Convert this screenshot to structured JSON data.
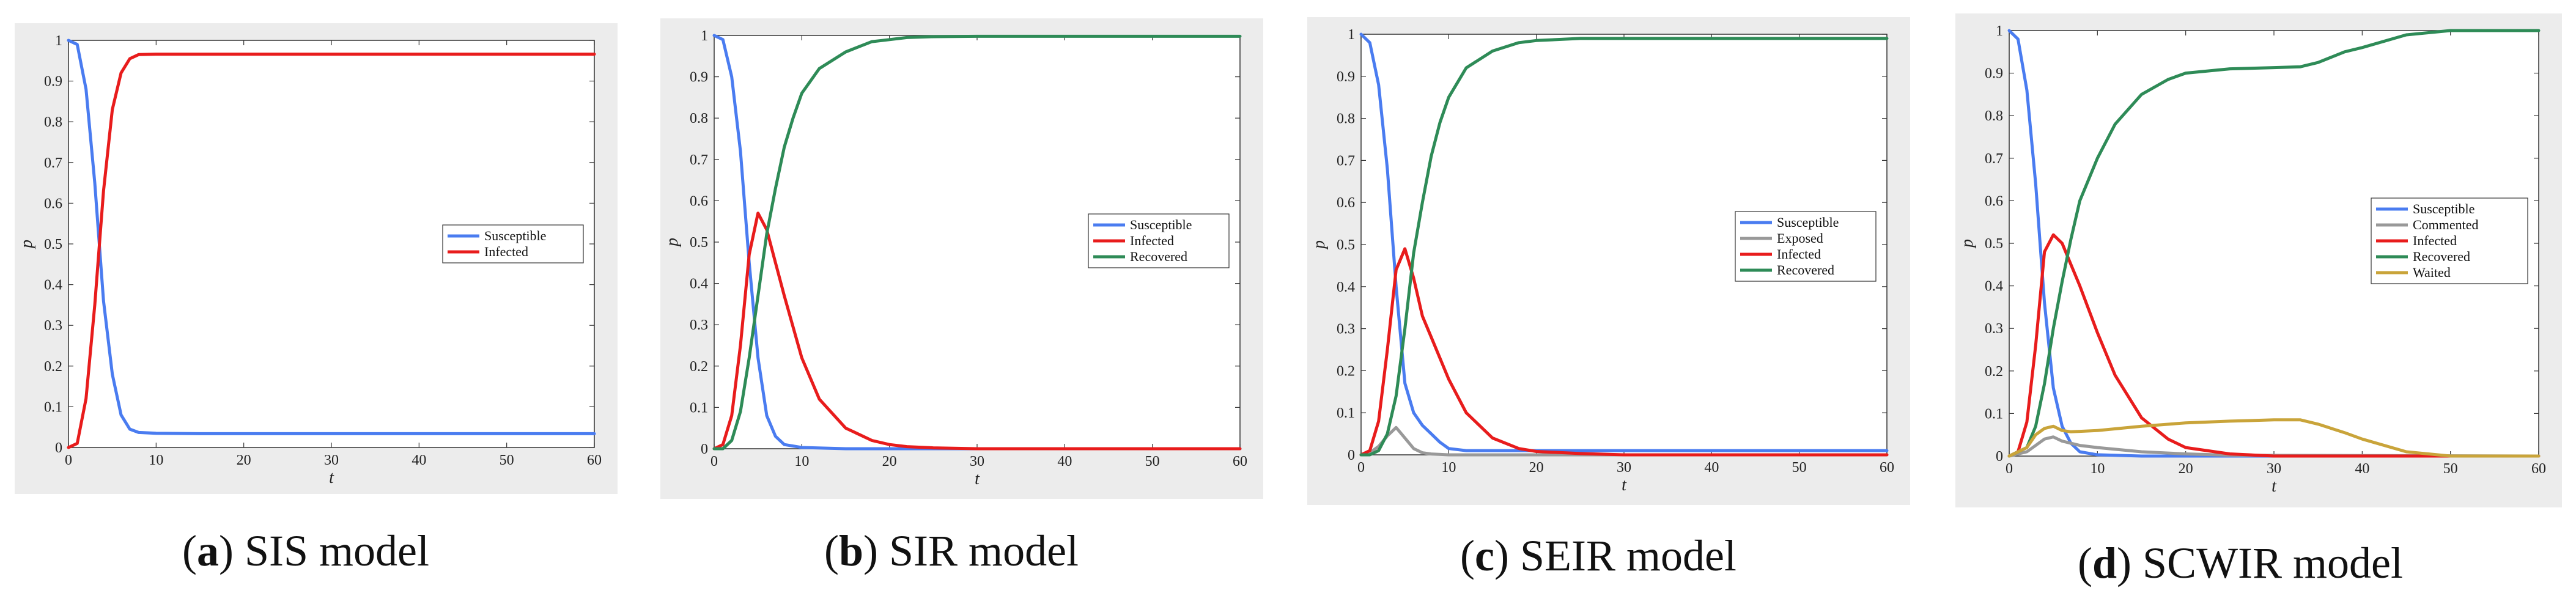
{
  "captions": [
    {
      "letter": "a",
      "text": " SIS model"
    },
    {
      "letter": "b",
      "text": " SIR model"
    },
    {
      "letter": "c",
      "text": " SEIR model"
    },
    {
      "letter": "d",
      "text": " SCWIR model"
    }
  ],
  "chart_data": [
    {
      "type": "line",
      "xlabel": "t",
      "ylabel": "p",
      "xlim": [
        0,
        60
      ],
      "ylim": [
        0,
        1
      ],
      "xticks": [
        "0",
        "10",
        "20",
        "30",
        "40",
        "50",
        "60"
      ],
      "yticks": [
        "0",
        "0.1",
        "0.2",
        "0.3",
        "0.4",
        "0.5",
        "0.6",
        "0.7",
        "0.8",
        "0.9",
        "1"
      ],
      "legend_position": "right",
      "series": [
        {
          "name": "Susceptible",
          "color": "#4a7cf0",
          "x": [
            0,
            1,
            2,
            3,
            4,
            5,
            6,
            7,
            8,
            10,
            15,
            20,
            30,
            40,
            50,
            60
          ],
          "y": [
            1.0,
            0.99,
            0.88,
            0.65,
            0.36,
            0.18,
            0.08,
            0.045,
            0.037,
            0.035,
            0.034,
            0.034,
            0.034,
            0.034,
            0.034,
            0.034
          ]
        },
        {
          "name": "Infected",
          "color": "#e81c1c",
          "x": [
            0,
            1,
            2,
            3,
            4,
            5,
            6,
            7,
            8,
            10,
            15,
            20,
            30,
            40,
            50,
            60
          ],
          "y": [
            0.0,
            0.01,
            0.12,
            0.35,
            0.63,
            0.83,
            0.92,
            0.955,
            0.965,
            0.966,
            0.966,
            0.966,
            0.966,
            0.966,
            0.966,
            0.966
          ]
        }
      ]
    },
    {
      "type": "line",
      "xlabel": "t",
      "ylabel": "p",
      "xlim": [
        0,
        60
      ],
      "ylim": [
        0,
        1
      ],
      "xticks": [
        "0",
        "10",
        "20",
        "30",
        "40",
        "50",
        "60"
      ],
      "yticks": [
        "0",
        "0.1",
        "0.2",
        "0.3",
        "0.4",
        "0.5",
        "0.6",
        "0.7",
        "0.8",
        "0.9",
        "1"
      ],
      "legend_position": "right",
      "series": [
        {
          "name": "Susceptible",
          "color": "#4a7cf0",
          "x": [
            0,
            1,
            2,
            3,
            4,
            5,
            6,
            7,
            8,
            10,
            15,
            20,
            30,
            40,
            50,
            60
          ],
          "y": [
            1.0,
            0.99,
            0.9,
            0.72,
            0.45,
            0.22,
            0.08,
            0.03,
            0.01,
            0.003,
            0.0,
            0.0,
            0.0,
            0.0,
            0.0,
            0.0
          ]
        },
        {
          "name": "Infected",
          "color": "#e81c1c",
          "x": [
            0,
            1,
            2,
            3,
            4,
            5,
            6,
            7,
            8,
            10,
            12,
            15,
            18,
            20,
            22,
            25,
            30,
            40,
            50,
            60
          ],
          "y": [
            0.0,
            0.01,
            0.08,
            0.25,
            0.47,
            0.57,
            0.53,
            0.45,
            0.37,
            0.22,
            0.12,
            0.05,
            0.02,
            0.01,
            0.005,
            0.002,
            0.0,
            0.0,
            0.0,
            0.0
          ]
        },
        {
          "name": "Recovered",
          "color": "#2e8b57",
          "x": [
            0,
            1,
            2,
            3,
            4,
            5,
            6,
            7,
            8,
            9,
            10,
            12,
            15,
            18,
            20,
            22,
            25,
            30,
            40,
            50,
            60
          ],
          "y": [
            0.0,
            0.0,
            0.02,
            0.09,
            0.22,
            0.37,
            0.52,
            0.63,
            0.73,
            0.8,
            0.86,
            0.92,
            0.96,
            0.985,
            0.99,
            0.995,
            0.997,
            0.998,
            0.998,
            0.998,
            0.998
          ]
        }
      ]
    },
    {
      "type": "line",
      "xlabel": "t",
      "ylabel": "p",
      "xlim": [
        0,
        60
      ],
      "ylim": [
        0,
        1
      ],
      "xticks": [
        "0",
        "10",
        "20",
        "30",
        "40",
        "50",
        "60"
      ],
      "yticks": [
        "0",
        "0.1",
        "0.2",
        "0.3",
        "0.4",
        "0.5",
        "0.6",
        "0.7",
        "0.8",
        "0.9",
        "1"
      ],
      "legend_position": "right",
      "series": [
        {
          "name": "Susceptible",
          "color": "#4a7cf0",
          "x": [
            0,
            1,
            2,
            3,
            4,
            5,
            6,
            7,
            8,
            9,
            10,
            12,
            15,
            20,
            30,
            40,
            50,
            60
          ],
          "y": [
            1.0,
            0.98,
            0.88,
            0.68,
            0.4,
            0.17,
            0.1,
            0.07,
            0.05,
            0.03,
            0.015,
            0.01,
            0.01,
            0.01,
            0.01,
            0.01,
            0.01,
            0.01
          ]
        },
        {
          "name": "Exposed",
          "color": "#999999",
          "x": [
            0,
            1,
            2,
            3,
            4,
            5,
            6,
            7,
            8,
            10,
            15,
            20,
            60
          ],
          "y": [
            0.0,
            0.005,
            0.02,
            0.045,
            0.065,
            0.04,
            0.015,
            0.005,
            0.002,
            0.0,
            0.0,
            0.0,
            0.0
          ]
        },
        {
          "name": "Infected",
          "color": "#e81c1c",
          "x": [
            0,
            1,
            2,
            3,
            4,
            5,
            6,
            7,
            8,
            10,
            12,
            15,
            18,
            20,
            25,
            30,
            40,
            50,
            60
          ],
          "y": [
            0.0,
            0.01,
            0.08,
            0.25,
            0.44,
            0.49,
            0.42,
            0.33,
            0.28,
            0.18,
            0.1,
            0.04,
            0.015,
            0.008,
            0.003,
            0.0,
            0.0,
            0.0,
            0.0
          ]
        },
        {
          "name": "Recovered",
          "color": "#2e8b57",
          "x": [
            0,
            1,
            2,
            3,
            4,
            5,
            6,
            7,
            8,
            9,
            10,
            12,
            15,
            18,
            20,
            25,
            30,
            40,
            50,
            60
          ],
          "y": [
            0.0,
            0.0,
            0.01,
            0.05,
            0.14,
            0.3,
            0.48,
            0.6,
            0.71,
            0.79,
            0.85,
            0.92,
            0.96,
            0.98,
            0.985,
            0.99,
            0.99,
            0.99,
            0.99,
            0.99
          ]
        }
      ]
    },
    {
      "type": "line",
      "xlabel": "t",
      "ylabel": "p",
      "xlim": [
        0,
        60
      ],
      "ylim": [
        0,
        1
      ],
      "xticks": [
        "0",
        "10",
        "20",
        "30",
        "40",
        "50",
        "60"
      ],
      "yticks": [
        "0",
        "0.1",
        "0.2",
        "0.3",
        "0.4",
        "0.5",
        "0.6",
        "0.7",
        "0.8",
        "0.9",
        "1"
      ],
      "legend_position": "right",
      "series": [
        {
          "name": "Susceptible",
          "color": "#4a7cf0",
          "x": [
            0,
            1,
            2,
            3,
            4,
            5,
            6,
            7,
            8,
            10,
            15,
            20,
            60
          ],
          "y": [
            1.0,
            0.98,
            0.86,
            0.64,
            0.36,
            0.16,
            0.07,
            0.03,
            0.01,
            0.003,
            0.0,
            0.0,
            0.0
          ]
        },
        {
          "name": "Commented",
          "color": "#999999",
          "x": [
            0,
            2,
            3,
            4,
            5,
            6,
            7,
            8,
            10,
            15,
            20,
            25,
            60
          ],
          "y": [
            0.0,
            0.01,
            0.025,
            0.04,
            0.045,
            0.035,
            0.03,
            0.025,
            0.02,
            0.01,
            0.005,
            0.002,
            0.0
          ]
        },
        {
          "name": "Infected",
          "color": "#e81c1c",
          "x": [
            0,
            1,
            2,
            3,
            4,
            5,
            6,
            7,
            8,
            10,
            12,
            15,
            18,
            20,
            25,
            30,
            40,
            50,
            60
          ],
          "y": [
            0.0,
            0.01,
            0.08,
            0.26,
            0.48,
            0.52,
            0.5,
            0.45,
            0.4,
            0.29,
            0.19,
            0.09,
            0.04,
            0.02,
            0.005,
            0.0,
            0.0,
            0.0,
            0.0
          ]
        },
        {
          "name": "Recovered",
          "color": "#2e8b57",
          "x": [
            0,
            2,
            3,
            4,
            5,
            6,
            7,
            8,
            10,
            12,
            15,
            18,
            20,
            25,
            30,
            33,
            35,
            38,
            40,
            45,
            50,
            55,
            60
          ],
          "y": [
            0.0,
            0.02,
            0.07,
            0.17,
            0.3,
            0.41,
            0.51,
            0.6,
            0.7,
            0.78,
            0.85,
            0.885,
            0.9,
            0.91,
            0.913,
            0.915,
            0.925,
            0.95,
            0.96,
            0.99,
            1.0,
            1.0,
            1.0
          ]
        },
        {
          "name": "Waited",
          "color": "#c9a43a",
          "x": [
            0,
            2,
            3,
            4,
            5,
            6,
            7,
            8,
            10,
            15,
            20,
            25,
            30,
            33,
            35,
            38,
            40,
            45,
            50,
            55,
            60
          ],
          "y": [
            0.0,
            0.02,
            0.05,
            0.065,
            0.07,
            0.06,
            0.057,
            0.058,
            0.06,
            0.07,
            0.078,
            0.082,
            0.085,
            0.085,
            0.075,
            0.055,
            0.04,
            0.01,
            0.0,
            0.0,
            0.0
          ]
        }
      ]
    }
  ]
}
